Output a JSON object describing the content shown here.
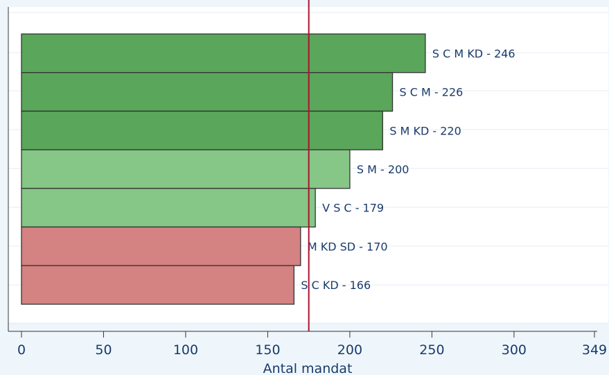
{
  "chart_data": {
    "type": "bar",
    "orientation": "horizontal",
    "title": "",
    "xlabel": "Antal mandat",
    "ylabel": "",
    "xlim": [
      0,
      349
    ],
    "xticks": [
      0,
      50,
      100,
      150,
      200,
      250,
      300,
      349
    ],
    "reference_line": 175,
    "grid": true,
    "legend": "none",
    "bars": [
      {
        "label": "S C M KD - 246",
        "value": 246,
        "color": "#5aa65a"
      },
      {
        "label": "S C M - 226",
        "value": 226,
        "color": "#5aa65a"
      },
      {
        "label": "S M KD - 220",
        "value": 220,
        "color": "#5aa65a"
      },
      {
        "label": "S M - 200",
        "value": 200,
        "color": "#86c686"
      },
      {
        "label": "V S C - 179",
        "value": 179,
        "color": "#86c686"
      },
      {
        "label": "M KD SD - 170",
        "value": 170,
        "color": "#d48282"
      },
      {
        "label": "S C KD - 166",
        "value": 166,
        "color": "#d48282"
      }
    ],
    "colors": {
      "background": "#eef6fb",
      "plot_background": "#ffffff",
      "reference_line": "#b0102f",
      "label_text": "#1a3a6b",
      "bar_outline": "#333333"
    }
  }
}
